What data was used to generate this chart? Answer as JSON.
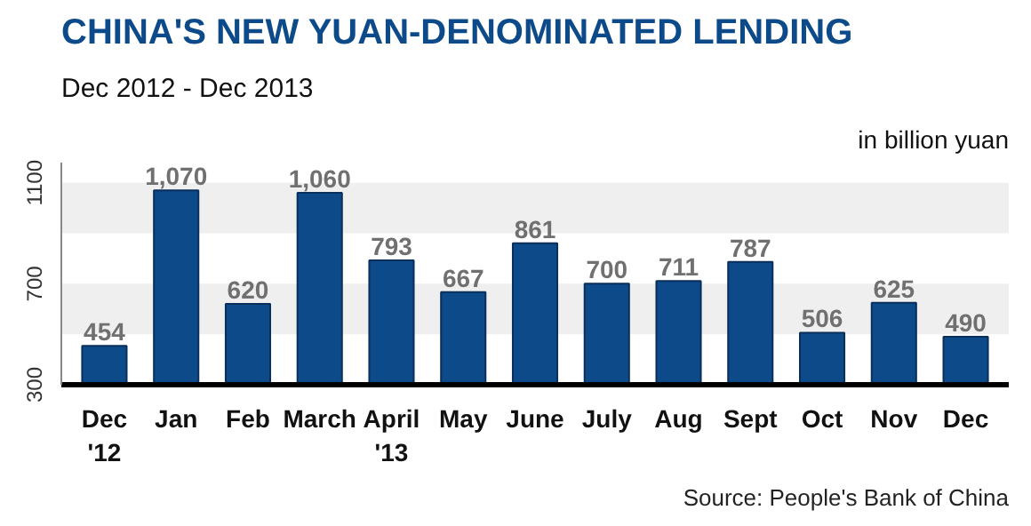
{
  "chart_data": {
    "type": "bar",
    "title": "CHINA'S NEW YUAN-DENOMINATED  LENDING",
    "subtitle": "Dec 2012 - Dec 2013",
    "ylabel": "in billion yuan",
    "categories": [
      "Dec\n'12",
      "Jan",
      "Feb",
      "March",
      "April\n'13",
      "May",
      "June",
      "July",
      "Aug",
      "Sept",
      "Oct",
      "Nov",
      "Dec"
    ],
    "values": [
      454,
      1070,
      620,
      1060,
      793,
      667,
      861,
      700,
      711,
      787,
      506,
      625,
      490
    ],
    "color": "#0d4a8a",
    "data_labels": true,
    "value_labels": [
      "454",
      "1,070",
      "620",
      "1,060",
      "793",
      "667",
      "861",
      "700",
      "711",
      "787",
      "506",
      "625",
      "490"
    ],
    "ylim": [
      300,
      1180
    ],
    "yticks": [
      300,
      700,
      1100
    ],
    "grid": false,
    "bands": [
      {
        "axis": "y",
        "from": 500,
        "to": 700,
        "color": "#efefef"
      },
      {
        "axis": "y",
        "from": 900,
        "to": 1100,
        "color": "#efefef"
      }
    ],
    "annotations": [
      "Source: People's Bank of China"
    ]
  }
}
